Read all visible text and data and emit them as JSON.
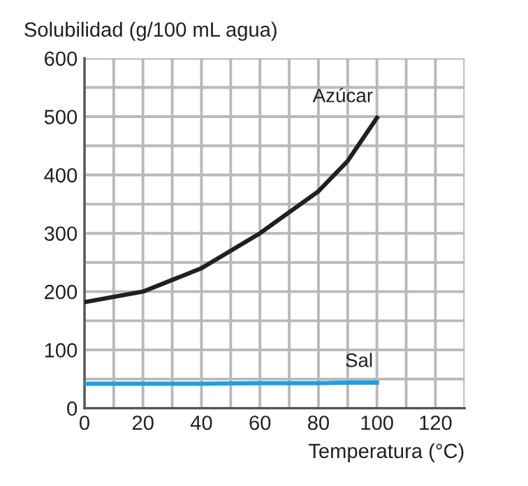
{
  "chart_data": {
    "type": "line",
    "ylabel": "Solubilidad (g/100 mL agua)",
    "xlabel": "Temperatura (°C)",
    "xlim": [
      0,
      130
    ],
    "ylim": [
      0,
      600
    ],
    "xticks": [
      0,
      {
        "value": 10,
        "label": null
      },
      20,
      {
        "value": 30,
        "label": null
      },
      40,
      {
        "value": 50,
        "label": null
      },
      60,
      {
        "value": 70,
        "label": null
      },
      80,
      {
        "value": 90,
        "label": null
      },
      100,
      {
        "value": 110,
        "label": null
      },
      120,
      {
        "value": 130,
        "label": null
      }
    ],
    "yticks": [
      0,
      {
        "value": 50,
        "label": null
      },
      100,
      {
        "value": 150,
        "label": null
      },
      200,
      {
        "value": 250,
        "label": null
      },
      300,
      {
        "value": 350,
        "label": null
      },
      400,
      {
        "value": 450,
        "label": null
      },
      500,
      {
        "value": 550,
        "label": null
      },
      600
    ],
    "grid": true,
    "line_style": "solid",
    "x": [
      0,
      20,
      40,
      60,
      70,
      80,
      90,
      100
    ],
    "series": [
      {
        "name": "Azúcar",
        "color": "#231f20",
        "values": [
          182,
          200,
          240,
          300,
          336,
          372,
          424,
          498
        ]
      },
      {
        "name": "Sal",
        "color": "#1ba1e2",
        "values": [
          42,
          42,
          42,
          43,
          43,
          43,
          44,
          44
        ]
      }
    ]
  }
}
